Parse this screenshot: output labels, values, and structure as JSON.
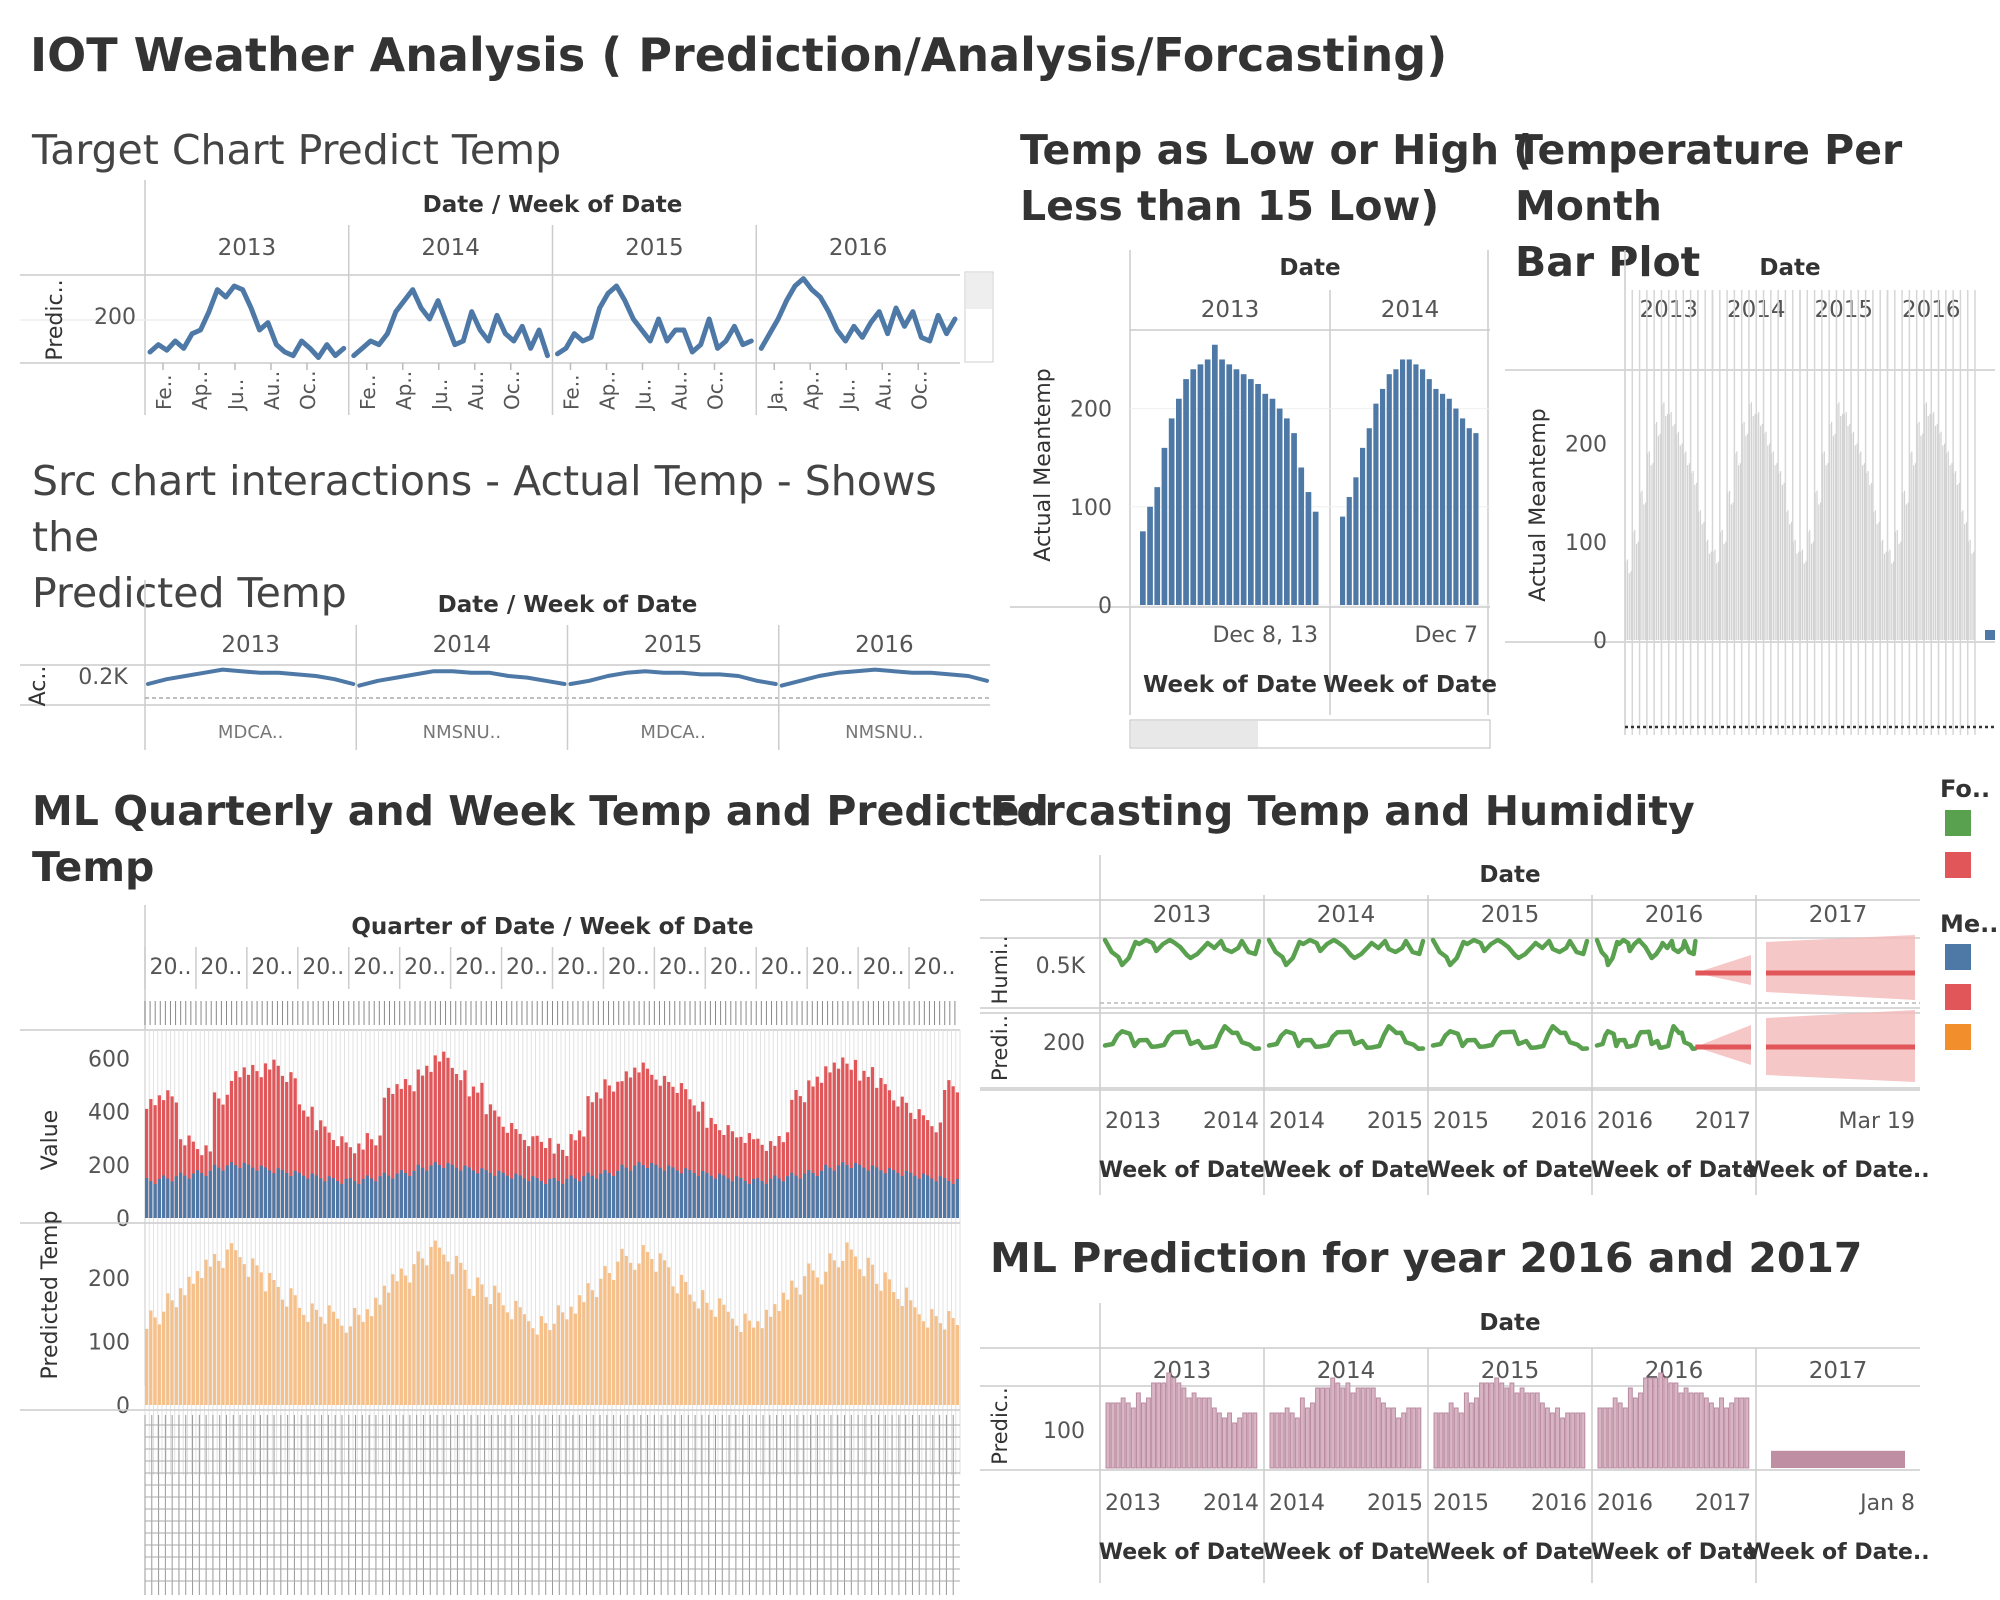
{
  "dashboard": {
    "title": "IOT Weather Analysis ( Prediction/Analysis/Forcasting)"
  },
  "colors": {
    "blue": "#4e79a7",
    "red": "#e15759",
    "green": "#59a14f",
    "orange": "#f28e2b",
    "gray": "#cfcfcf",
    "mauve": "#c08ea3"
  },
  "charts": {
    "target": {
      "title": "Target Chart Predict Temp"
    },
    "src": {
      "title_line1": "Src chart interactions - Actual Temp - Shows the",
      "title_line2": "Predicted Temp"
    },
    "lowhigh": {
      "title_line1": "Temp as Low or High (",
      "title_line2": "Less than 15 Low)"
    },
    "month": {
      "title_line1": "Temperature Per Month",
      "title_line2": "Bar Plot"
    },
    "ml": {
      "title_line1": "ML Quarterly and Week Temp and Predicted",
      "title_line2": "Temp"
    },
    "forecast": {
      "title": "Forcasting Temp and Humidity"
    },
    "pred": {
      "title": "ML Prediction for year 2016 and 2017"
    }
  },
  "legend": {
    "group1_title": "Fo..",
    "group2_title": "Me.."
  },
  "chart_data": [
    {
      "id": "target",
      "type": "line",
      "title": "Target Chart Predict Temp",
      "column_header": "Date / Week of Date",
      "panels": [
        "2013",
        "2014",
        "2015",
        "2016"
      ],
      "ylabel": "Predic..",
      "yticks": [
        "200"
      ],
      "ylim": [
        60,
        300
      ],
      "xticks": [
        [
          "Fe..",
          "Ap..",
          "Ju..",
          "Au..",
          "Oc.."
        ],
        [
          "Fe..",
          "Ap..",
          "Ju..",
          "Au..",
          "Oc.."
        ],
        [
          "Fe..",
          "Ap..",
          "Ju..",
          "Au..",
          "Oc.."
        ],
        [
          "Ja..",
          "Ap..",
          "Ju..",
          "Au..",
          "Oc.."
        ]
      ],
      "series": [
        {
          "values": [
            90,
            110,
            95,
            120,
            100,
            140,
            150,
            200,
            260,
            240,
            270,
            260,
            210,
            150,
            170,
            110,
            90,
            80,
            120,
            100,
            75,
            110,
            80,
            100
          ]
        },
        {
          "values": [
            80,
            100,
            120,
            110,
            140,
            200,
            230,
            260,
            210,
            180,
            230,
            170,
            110,
            120,
            200,
            150,
            120,
            190,
            140,
            120,
            160,
            100,
            150,
            80
          ]
        },
        {
          "values": [
            85,
            100,
            140,
            120,
            130,
            210,
            250,
            270,
            230,
            180,
            150,
            120,
            180,
            120,
            150,
            150,
            90,
            110,
            180,
            100,
            120,
            160,
            110,
            120
          ]
        },
        {
          "values": [
            100,
            140,
            180,
            230,
            270,
            290,
            260,
            240,
            200,
            150,
            120,
            160,
            130,
            170,
            200,
            140,
            210,
            160,
            200,
            130,
            120,
            190,
            140,
            180
          ]
        }
      ]
    },
    {
      "id": "src",
      "type": "line",
      "title": "Src chart interactions - Actual Temp - Shows the Predicted Temp",
      "column_header": "Date / Week of Date",
      "panels": [
        "2013",
        "2014",
        "2015",
        "2016"
      ],
      "ylabel": "Ac..",
      "yticks": [
        "0.2K"
      ],
      "xtick_text": [
        "MDCA..",
        "NMSNU..",
        "MDCA..",
        "NMSNU.."
      ],
      "series": [
        {
          "values": [
            0.5,
            0.65,
            0.75,
            0.85,
            0.95,
            0.9,
            0.85,
            0.85,
            0.8,
            0.75,
            0.65,
            0.5
          ]
        },
        {
          "values": [
            0.45,
            0.6,
            0.7,
            0.8,
            0.9,
            0.9,
            0.85,
            0.85,
            0.75,
            0.7,
            0.6,
            0.5
          ]
        },
        {
          "values": [
            0.5,
            0.6,
            0.75,
            0.85,
            0.9,
            0.85,
            0.85,
            0.8,
            0.8,
            0.75,
            0.6,
            0.5
          ]
        },
        {
          "values": [
            0.45,
            0.6,
            0.75,
            0.85,
            0.9,
            0.95,
            0.9,
            0.85,
            0.85,
            0.8,
            0.75,
            0.6
          ]
        }
      ]
    },
    {
      "id": "lowhigh",
      "type": "bar",
      "title": "Temp as Low or High ( Less than 15 Low)",
      "column_header": "Date",
      "panels": [
        "2013",
        "2014"
      ],
      "ylabel": "Actual Meantemp",
      "yticks": [
        0,
        100,
        200
      ],
      "ylim": [
        0,
        280
      ],
      "xtick_labels": [
        "Dec 8, 13",
        "Dec 7"
      ],
      "xlabel": "Week of Date",
      "series": [
        {
          "values": [
            75,
            100,
            120,
            160,
            190,
            210,
            230,
            240,
            245,
            250,
            265,
            250,
            245,
            240,
            235,
            230,
            225,
            215,
            210,
            200,
            190,
            175,
            140,
            115,
            95
          ]
        },
        {
          "values": [
            90,
            110,
            130,
            160,
            180,
            205,
            220,
            235,
            240,
            250,
            250,
            245,
            240,
            230,
            220,
            215,
            210,
            200,
            190,
            180,
            175
          ]
        }
      ]
    },
    {
      "id": "month",
      "type": "bar",
      "title": "Temperature Per Month Bar Plot",
      "column_header": "Date",
      "panels": [
        "2013",
        "2014",
        "2015",
        "2016"
      ],
      "ylabel": "Actual Meantemp",
      "yticks": [
        0,
        100,
        200
      ],
      "ylim": [
        0,
        280
      ],
      "values": [
        80,
        110,
        150,
        190,
        220,
        240,
        230,
        210,
        190,
        170,
        130,
        100,
        90,
        110,
        150,
        190,
        220,
        240,
        230,
        210,
        190,
        170,
        130,
        100,
        90,
        110,
        150,
        190,
        220,
        240,
        230,
        210,
        190,
        170,
        130,
        100,
        90,
        110,
        150,
        190,
        220,
        240,
        230,
        210,
        190,
        170,
        130,
        100
      ]
    },
    {
      "id": "ml",
      "type": "bar",
      "title": "ML Quarterly and Week Temp and Predicted Temp",
      "column_header": "Quarter of Date / Week of Date",
      "panels": [
        "20..",
        "20..",
        "20..",
        "20..",
        "20..",
        "20..",
        "20..",
        "20..",
        "20..",
        "20..",
        "20..",
        "20..",
        "20..",
        "20..",
        "20..",
        "20.."
      ],
      "rows": [
        {
          "ylabel": "Value",
          "yticks": [
            0,
            200,
            400,
            600
          ],
          "ylim": [
            0,
            650
          ],
          "series": [
            {
              "name": "blue",
              "values": [
                150,
                160,
                170,
                180,
                200,
                210,
                200,
                190,
                180,
                170,
                160,
                150,
                150,
                160,
                170,
                180,
                200,
                210,
                200,
                190,
                180,
                170,
                160,
                150,
                150,
                160,
                170,
                180,
                200,
                210,
                200,
                190,
                180,
                170,
                160,
                150,
                150,
                160,
                170,
                180,
                200,
                210,
                200,
                190,
                180,
                170,
                160,
                150
              ]
            },
            {
              "name": "red",
              "values": [
                440,
                460,
                300,
                250,
                450,
                540,
                550,
                580,
                520,
                400,
                350,
                300,
                260,
                300,
                480,
                500,
                560,
                600,
                540,
                480,
                400,
                340,
                300,
                280,
                260,
                320,
                450,
                500,
                540,
                560,
                520,
                480,
                420,
                360,
                320,
                300,
                280,
                300,
                460,
                520,
                560,
                580,
                540,
                500,
                440,
                380,
                340,
                500
              ]
            }
          ]
        },
        {
          "ylabel": "Predicted Temp",
          "yticks": [
            0,
            100,
            200
          ],
          "ylim": [
            0,
            260
          ],
          "series": [
            {
              "name": "orange",
              "values": [
                140,
                160,
                190,
                210,
                230,
                240,
                220,
                190,
                170,
                150,
                140,
                130,
                140,
                160,
                190,
                210,
                230,
                240,
                220,
                190,
                170,
                150,
                140,
                130,
                140,
                160,
                190,
                210,
                230,
                240,
                220,
                190,
                170,
                150,
                140,
                130,
                140,
                160,
                190,
                210,
                230,
                240,
                220,
                190,
                170,
                150,
                140,
                130
              ]
            }
          ]
        }
      ]
    },
    {
      "id": "forecast",
      "type": "line",
      "title": "Forcasting Temp and Humidity",
      "column_header": "Date",
      "panels": [
        "2013",
        "2014",
        "2015",
        "2016",
        "2017"
      ],
      "rows": [
        {
          "ylabel": "Humi..",
          "yticks": [
            "0.5K"
          ]
        },
        {
          "ylabel": "Predi..",
          "yticks": [
            "200"
          ]
        }
      ],
      "xtick_labels": [
        [
          "2013",
          "2014"
        ],
        [
          "2014",
          "2015"
        ],
        [
          "2015",
          "2016"
        ],
        [
          "2016",
          "2017"
        ],
        [
          "",
          "Mar 19"
        ]
      ],
      "xlabels": [
        "Week of Date",
        "Week of Date",
        "Week of Date",
        "Week of Date",
        "Week of Date.."
      ],
      "series": [
        {
          "name": "humidity",
          "values": [
            0.7,
            0.6,
            0.5,
            0.35,
            0.45,
            0.7,
            0.65,
            0.7,
            0.75,
            0.6,
            0.7,
            0.75,
            0.7,
            0.6,
            0.45,
            0.5,
            0.55,
            0.65,
            0.7,
            0.6,
            0.7,
            0.55,
            0.6,
            0.65,
            0.75,
            0.55,
            0.5,
            0.7
          ]
        },
        {
          "name": "temp",
          "values": [
            0.3,
            0.4,
            0.5,
            0.65,
            0.55,
            0.4,
            0.45,
            0.4,
            0.35,
            0.3,
            0.4,
            0.5,
            0.65,
            0.6,
            0.55,
            0.4,
            0.4,
            0.35,
            0.3,
            0.4,
            0.55,
            0.65,
            0.6,
            0.55,
            0.45,
            0.35,
            0.35,
            0.3
          ]
        }
      ],
      "forecast_level": 0.5
    },
    {
      "id": "pred",
      "type": "bar",
      "title": "ML Prediction for year 2016 and 2017",
      "column_header": "Date",
      "panels": [
        "2013",
        "2014",
        "2015",
        "2016",
        "2017"
      ],
      "ylabel": "Predic..",
      "yticks": [
        "100"
      ],
      "xtick_labels": [
        [
          "2013",
          "2014"
        ],
        [
          "2014",
          "2015"
        ],
        [
          "2015",
          "2016"
        ],
        [
          "2016",
          "2017"
        ],
        [
          "",
          "Jan 8"
        ]
      ],
      "xlabels": [
        "Week of Date",
        "Week of Date",
        "Week of Date",
        "Week of Date",
        "Week of Date.."
      ],
      "values": [
        0.65,
        0.7,
        0.75,
        0.85,
        0.95,
        0.8,
        0.7,
        0.6,
        0.55,
        0.55,
        0.55,
        0.6,
        0.7,
        0.8,
        0.9,
        0.85,
        0.8,
        0.7,
        0.6,
        0.6,
        0.55,
        0.65,
        0.75,
        0.85,
        0.9,
        0.85,
        0.75,
        0.65,
        0.6,
        0.55,
        0.6,
        0.7,
        0.8,
        0.9,
        0.95,
        0.85,
        0.75,
        0.7,
        0.7,
        0.7,
        0.12
      ]
    }
  ]
}
